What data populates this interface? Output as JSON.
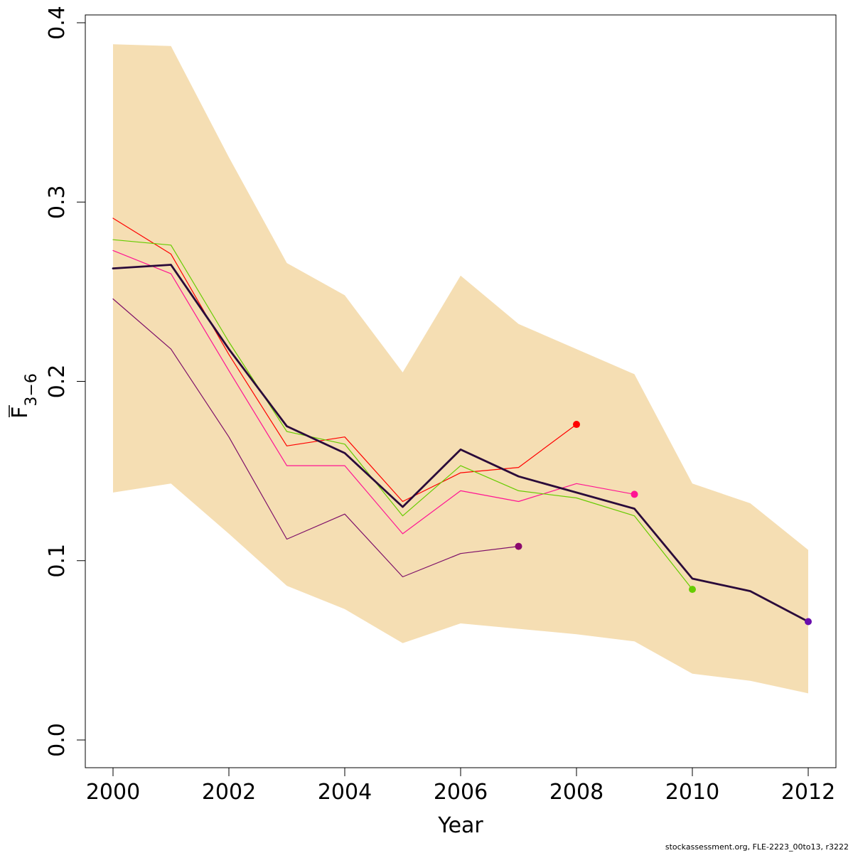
{
  "chart_data": {
    "type": "line",
    "xlabel": "Year",
    "ylabel_main": "F",
    "ylabel_sub": "3−6",
    "xlim": [
      2000,
      2012
    ],
    "ylim": [
      0,
      0.4
    ],
    "x_ticks": [
      "2000",
      "2002",
      "2004",
      "2006",
      "2008",
      "2010",
      "2012"
    ],
    "y_ticks": [
      "0.0",
      "0.1",
      "0.2",
      "0.3",
      "0.4"
    ],
    "confidence_band": {
      "color": "#F5DEB3",
      "x": [
        2000,
        2001,
        2002,
        2003,
        2004,
        2005,
        2006,
        2007,
        2008,
        2009,
        2010,
        2011,
        2012
      ],
      "upper": [
        0.388,
        0.387,
        0.325,
        0.266,
        0.248,
        0.205,
        0.259,
        0.232,
        0.218,
        0.204,
        0.143,
        0.132,
        0.106
      ],
      "lower": [
        0.138,
        0.143,
        0.115,
        0.086,
        0.073,
        0.054,
        0.065,
        0.062,
        0.059,
        0.055,
        0.037,
        0.033,
        0.026
      ]
    },
    "series": [
      {
        "color": "#7E0F68",
        "width": 1.2,
        "x": [
          2000,
          2001,
          2002,
          2003,
          2004,
          2005,
          2006,
          2007
        ],
        "values": [
          0.246,
          0.218,
          0.169,
          0.112,
          0.126,
          0.091,
          0.104,
          0.108
        ]
      },
      {
        "color": "#FF0000",
        "width": 1.2,
        "x": [
          2000,
          2001,
          2002,
          2003,
          2004,
          2005,
          2006,
          2007,
          2008
        ],
        "values": [
          0.291,
          0.271,
          0.215,
          0.164,
          0.169,
          0.133,
          0.149,
          0.152,
          0.176
        ]
      },
      {
        "color": "#FF1493",
        "width": 1.2,
        "x": [
          2000,
          2001,
          2002,
          2003,
          2004,
          2005,
          2006,
          2007,
          2008,
          2009
        ],
        "values": [
          0.273,
          0.26,
          0.206,
          0.153,
          0.153,
          0.115,
          0.139,
          0.133,
          0.143,
          0.137
        ]
      },
      {
        "color": "#66CC00",
        "width": 1.2,
        "x": [
          2000,
          2001,
          2002,
          2003,
          2004,
          2005,
          2006,
          2007,
          2008,
          2009,
          2010
        ],
        "values": [
          0.279,
          0.276,
          0.222,
          0.172,
          0.165,
          0.125,
          0.153,
          0.139,
          0.135,
          0.125,
          0.084
        ]
      },
      {
        "color": "#2A0A3A",
        "width": 2.8,
        "x": [
          2000,
          2001,
          2002,
          2003,
          2004,
          2005,
          2006,
          2007,
          2008,
          2009,
          2010,
          2011,
          2012
        ],
        "values": [
          0.263,
          0.265,
          0.218,
          0.175,
          0.16,
          0.13,
          0.162,
          0.147,
          0.138,
          0.129,
          0.09,
          0.083,
          0.066
        ]
      }
    ],
    "end_points": [
      {
        "x": 2007,
        "y": 0.108,
        "color": "#8B0A6E"
      },
      {
        "x": 2008,
        "y": 0.176,
        "color": "#FF0000"
      },
      {
        "x": 2009,
        "y": 0.137,
        "color": "#FF1493"
      },
      {
        "x": 2010,
        "y": 0.084,
        "color": "#66CC00"
      },
      {
        "x": 2012,
        "y": 0.066,
        "color": "#6A0DAD"
      }
    ]
  },
  "footer": {
    "credit": "stockassessment.org, FLE-2223_00to13, r3222"
  }
}
